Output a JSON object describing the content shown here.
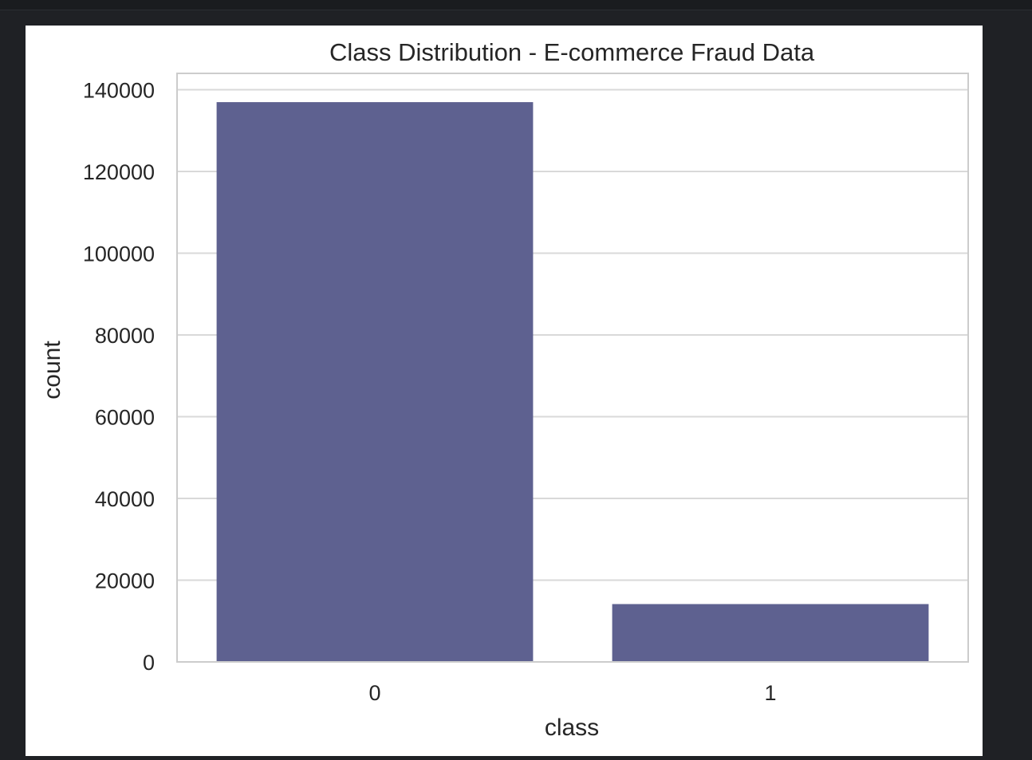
{
  "chart_data": {
    "type": "bar",
    "title": "Class Distribution - E-commerce Fraud Data",
    "xlabel": "class",
    "ylabel": "count",
    "categories": [
      "0",
      "1"
    ],
    "values": [
      136961,
      14151
    ],
    "ylim": [
      0,
      144000
    ],
    "yticks": [
      0,
      20000,
      40000,
      60000,
      80000,
      100000,
      120000,
      140000
    ],
    "grid": true,
    "bar_color": "#5e6190",
    "grid_color": "#d9d9d9",
    "frame_color": "#cccccc"
  }
}
